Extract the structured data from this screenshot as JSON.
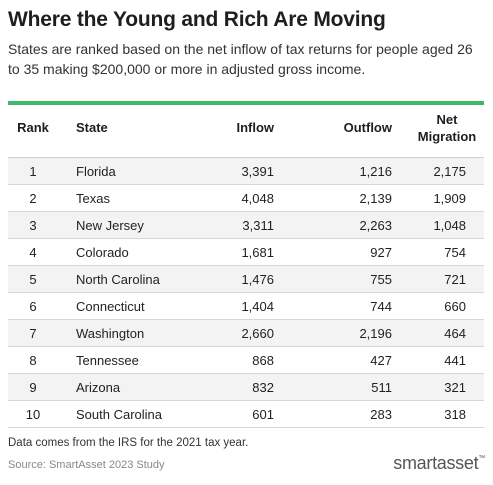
{
  "title": "Where the Young and Rich Are Moving",
  "subtitle": "States are ranked based on the net inflow of tax returns for people aged 26 to 35 making $200,000 or more in adjusted gross income.",
  "footnote": "Data comes from the IRS for the 2021 tax year.",
  "source": "Source: SmartAsset 2023 Study",
  "logo": "smartasset",
  "logo_tm": "™",
  "colors": {
    "accent_line": "#3fb86a",
    "row_stripe": "#f3f3f3"
  },
  "chart_data": {
    "type": "table",
    "columns": [
      "Rank",
      "State",
      "Inflow",
      "Outflow",
      "Net Migration"
    ],
    "rows": [
      [
        "1",
        "Florida",
        "3,391",
        "1,216",
        "2,175"
      ],
      [
        "2",
        "Texas",
        "4,048",
        "2,139",
        "1,909"
      ],
      [
        "3",
        "New Jersey",
        "3,311",
        "2,263",
        "1,048"
      ],
      [
        "4",
        "Colorado",
        "1,681",
        "927",
        "754"
      ],
      [
        "5",
        "North Carolina",
        "1,476",
        "755",
        "721"
      ],
      [
        "6",
        "Connecticut",
        "1,404",
        "744",
        "660"
      ],
      [
        "7",
        "Washington",
        "2,660",
        "2,196",
        "464"
      ],
      [
        "8",
        "Tennessee",
        "868",
        "427",
        "441"
      ],
      [
        "9",
        "Arizona",
        "832",
        "511",
        "321"
      ],
      [
        "10",
        "South Carolina",
        "601",
        "283",
        "318"
      ]
    ]
  }
}
